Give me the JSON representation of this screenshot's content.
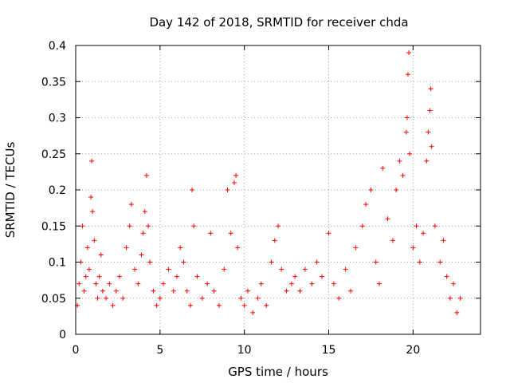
{
  "chart_data": {
    "type": "scatter",
    "title": "Day 142 of 2018, SRMTID for receiver chda",
    "xlabel": "GPS time / hours",
    "ylabel": "SRMTID / TECUs",
    "xlim": [
      0,
      24
    ],
    "ylim": [
      0,
      0.4
    ],
    "xticks": [
      0,
      5,
      10,
      15,
      20
    ],
    "xtick_labels": [
      "0",
      "5",
      "10",
      "15",
      "20"
    ],
    "yticks": [
      0,
      0.05,
      0.1,
      0.15,
      0.2,
      0.25,
      0.3,
      0.35,
      0.4
    ],
    "ytick_labels": [
      "0",
      "0.05",
      "0.1",
      "0.15",
      "0.2",
      "0.25",
      "0.3",
      "0.35",
      "0.4"
    ],
    "grid": true,
    "marker": "+",
    "color": "#ff0000",
    "series": [
      {
        "name": "SRMTID",
        "points": [
          [
            0.1,
            0.04
          ],
          [
            0.2,
            0.07
          ],
          [
            0.3,
            0.1
          ],
          [
            0.4,
            0.15
          ],
          [
            0.5,
            0.06
          ],
          [
            0.6,
            0.08
          ],
          [
            0.7,
            0.12
          ],
          [
            0.8,
            0.09
          ],
          [
            0.9,
            0.19
          ],
          [
            0.95,
            0.24
          ],
          [
            1.0,
            0.17
          ],
          [
            1.1,
            0.13
          ],
          [
            1.2,
            0.07
          ],
          [
            1.3,
            0.05
          ],
          [
            1.4,
            0.08
          ],
          [
            1.5,
            0.11
          ],
          [
            1.6,
            0.06
          ],
          [
            1.8,
            0.05
          ],
          [
            2.0,
            0.07
          ],
          [
            2.2,
            0.04
          ],
          [
            2.4,
            0.06
          ],
          [
            2.6,
            0.08
          ],
          [
            2.8,
            0.05
          ],
          [
            3.0,
            0.12
          ],
          [
            3.2,
            0.15
          ],
          [
            3.3,
            0.18
          ],
          [
            3.5,
            0.09
          ],
          [
            3.7,
            0.07
          ],
          [
            3.9,
            0.11
          ],
          [
            4.0,
            0.14
          ],
          [
            4.1,
            0.17
          ],
          [
            4.2,
            0.22
          ],
          [
            4.3,
            0.15
          ],
          [
            4.4,
            0.1
          ],
          [
            4.6,
            0.06
          ],
          [
            4.8,
            0.04
          ],
          [
            5.0,
            0.05
          ],
          [
            5.2,
            0.07
          ],
          [
            5.5,
            0.09
          ],
          [
            5.8,
            0.06
          ],
          [
            6.0,
            0.08
          ],
          [
            6.2,
            0.12
          ],
          [
            6.4,
            0.1
          ],
          [
            6.6,
            0.06
          ],
          [
            6.8,
            0.04
          ],
          [
            6.9,
            0.2
          ],
          [
            7.0,
            0.15
          ],
          [
            7.2,
            0.08
          ],
          [
            7.5,
            0.05
          ],
          [
            7.8,
            0.07
          ],
          [
            8.0,
            0.14
          ],
          [
            8.2,
            0.06
          ],
          [
            8.5,
            0.04
          ],
          [
            8.8,
            0.09
          ],
          [
            9.0,
            0.2
          ],
          [
            9.2,
            0.14
          ],
          [
            9.4,
            0.21
          ],
          [
            9.5,
            0.22
          ],
          [
            9.6,
            0.12
          ],
          [
            9.8,
            0.05
          ],
          [
            10.0,
            0.04
          ],
          [
            10.2,
            0.06
          ],
          [
            10.5,
            0.03
          ],
          [
            10.8,
            0.05
          ],
          [
            11.0,
            0.07
          ],
          [
            11.3,
            0.04
          ],
          [
            11.6,
            0.1
          ],
          [
            11.8,
            0.13
          ],
          [
            12.0,
            0.15
          ],
          [
            12.2,
            0.09
          ],
          [
            12.5,
            0.06
          ],
          [
            12.8,
            0.07
          ],
          [
            13.0,
            0.08
          ],
          [
            13.3,
            0.06
          ],
          [
            13.6,
            0.09
          ],
          [
            14.0,
            0.07
          ],
          [
            14.3,
            0.1
          ],
          [
            14.6,
            0.08
          ],
          [
            15.0,
            0.14
          ],
          [
            15.3,
            0.07
          ],
          [
            15.6,
            0.05
          ],
          [
            16.0,
            0.09
          ],
          [
            16.3,
            0.06
          ],
          [
            16.6,
            0.12
          ],
          [
            17.0,
            0.15
          ],
          [
            17.2,
            0.18
          ],
          [
            17.5,
            0.2
          ],
          [
            17.8,
            0.1
          ],
          [
            18.0,
            0.07
          ],
          [
            18.2,
            0.23
          ],
          [
            18.5,
            0.16
          ],
          [
            18.8,
            0.13
          ],
          [
            19.0,
            0.2
          ],
          [
            19.2,
            0.24
          ],
          [
            19.4,
            0.22
          ],
          [
            19.6,
            0.28
          ],
          [
            19.65,
            0.3
          ],
          [
            19.7,
            0.36
          ],
          [
            19.75,
            0.39
          ],
          [
            19.8,
            0.25
          ],
          [
            20.0,
            0.12
          ],
          [
            20.2,
            0.15
          ],
          [
            20.4,
            0.1
          ],
          [
            20.6,
            0.14
          ],
          [
            20.8,
            0.24
          ],
          [
            20.9,
            0.28
          ],
          [
            21.0,
            0.31
          ],
          [
            21.05,
            0.34
          ],
          [
            21.1,
            0.26
          ],
          [
            21.3,
            0.15
          ],
          [
            21.6,
            0.1
          ],
          [
            21.8,
            0.13
          ],
          [
            22.0,
            0.08
          ],
          [
            22.2,
            0.05
          ],
          [
            22.4,
            0.07
          ],
          [
            22.6,
            0.03
          ],
          [
            22.8,
            0.05
          ]
        ]
      }
    ]
  }
}
